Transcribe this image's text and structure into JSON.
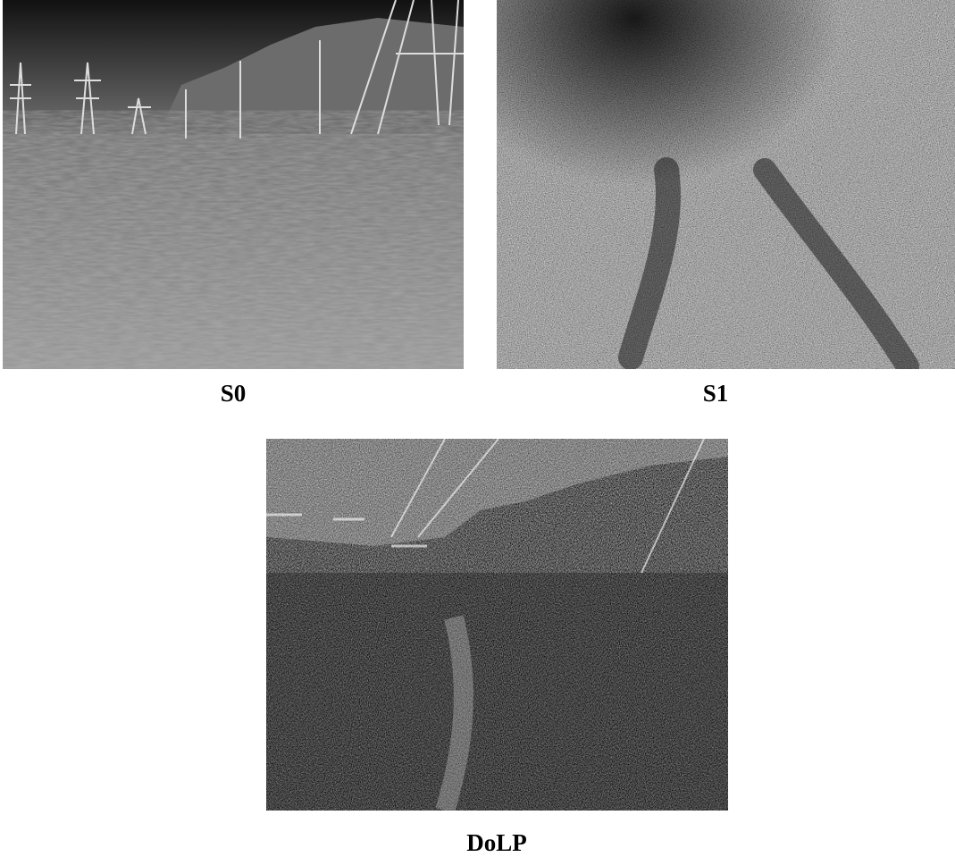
{
  "panels": [
    {
      "label": "S0"
    },
    {
      "label": "S1"
    },
    {
      "label": "DoLP"
    }
  ]
}
